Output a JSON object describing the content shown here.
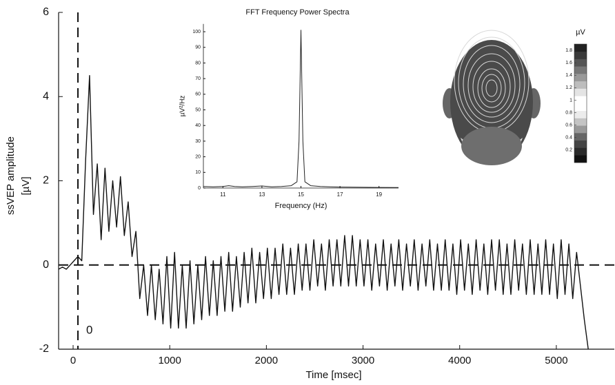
{
  "chart_data": [
    {
      "type": "line",
      "xlabel": "Time [msec]",
      "ylabel": [
        "ssVEP amplitude",
        "[µV]"
      ],
      "xlim": [
        -150,
        5600
      ],
      "xticks": [
        0,
        1000,
        2000,
        3000,
        4000,
        5000
      ],
      "ylim": [
        -2,
        6
      ],
      "yticks": [
        -2,
        0,
        2,
        4,
        6
      ],
      "hline": 0,
      "vline": 50,
      "vline_label": "0",
      "color": "#111111",
      "x": [
        -150,
        -110,
        -70,
        -30,
        10,
        50,
        90,
        130,
        170,
        210,
        250,
        290,
        330,
        370,
        410,
        450,
        490,
        530,
        570,
        610,
        650,
        690,
        730,
        770,
        810,
        850,
        890,
        930,
        970,
        1010,
        1050,
        1090,
        1130,
        1170,
        1210,
        1250,
        1290,
        1330,
        1370,
        1410,
        1450,
        1490,
        1530,
        1570,
        1610,
        1650,
        1690,
        1730,
        1770,
        1810,
        1850,
        1890,
        1930,
        1970,
        2010,
        2050,
        2090,
        2130,
        2170,
        2210,
        2250,
        2290,
        2330,
        2370,
        2410,
        2450,
        2490,
        2530,
        2570,
        2610,
        2650,
        2690,
        2730,
        2770,
        2810,
        2850,
        2890,
        2930,
        2970,
        3010,
        3050,
        3090,
        3130,
        3170,
        3210,
        3250,
        3290,
        3330,
        3370,
        3410,
        3450,
        3490,
        3530,
        3570,
        3610,
        3650,
        3690,
        3730,
        3770,
        3810,
        3850,
        3890,
        3930,
        3970,
        4010,
        4050,
        4090,
        4130,
        4170,
        4210,
        4250,
        4290,
        4330,
        4370,
        4410,
        4450,
        4490,
        4530,
        4570,
        4610,
        4650,
        4690,
        4730,
        4770,
        4810,
        4850,
        4890,
        4930,
        4970,
        5010,
        5050,
        5090,
        5130,
        5170,
        5210,
        5250,
        5290,
        5330
      ],
      "values": [
        -0.1,
        -0.05,
        -0.1,
        0,
        0.1,
        0.2,
        0.1,
        2.5,
        4.5,
        1.2,
        2.4,
        0.6,
        2.3,
        0.8,
        2.0,
        0.9,
        2.1,
        0.7,
        1.5,
        0.2,
        0.8,
        -0.8,
        0.0,
        -1.2,
        0.0,
        -1.3,
        -0.1,
        -1.4,
        0.2,
        -1.5,
        0.3,
        -1.5,
        0.0,
        -1.5,
        0.1,
        -1.4,
        0.0,
        -1.3,
        0.2,
        -1.2,
        0.1,
        -1.2,
        0.2,
        -1.1,
        0.3,
        -1.1,
        0.2,
        -1.0,
        0.3,
        -0.9,
        0.4,
        -0.9,
        0.3,
        -0.8,
        0.4,
        -0.8,
        0.4,
        -0.7,
        0.5,
        -0.7,
        0.4,
        -0.7,
        0.5,
        -0.6,
        0.5,
        -0.6,
        0.6,
        -0.5,
        0.5,
        -0.6,
        0.6,
        -0.5,
        0.6,
        -0.5,
        0.7,
        -0.5,
        0.7,
        -0.5,
        0.6,
        -0.5,
        0.6,
        -0.6,
        0.5,
        -0.5,
        0.6,
        -0.6,
        0.5,
        -0.5,
        0.6,
        -0.6,
        0.5,
        -0.5,
        0.6,
        -0.6,
        0.5,
        -0.5,
        0.6,
        -0.6,
        0.5,
        -0.6,
        0.6,
        -0.6,
        0.5,
        -0.7,
        0.6,
        -0.6,
        0.5,
        -0.7,
        0.6,
        -0.6,
        0.5,
        -0.7,
        0.6,
        -0.6,
        0.6,
        -0.7,
        0.5,
        -0.7,
        0.6,
        -0.6,
        0.5,
        -0.7,
        0.6,
        -0.7,
        0.5,
        -0.7,
        0.6,
        -0.7,
        0.5,
        -0.8,
        0.6,
        -0.7,
        0.5,
        -0.8,
        0.3,
        -0.5,
        -1.3,
        -2.0
      ]
    },
    {
      "type": "line",
      "title": "FFT Frequency Power Spectra",
      "xlabel": "Frequency (Hz)",
      "ylabel": "µV²/Hz",
      "xlim": [
        10,
        20
      ],
      "xticks": [
        11,
        13,
        15,
        17,
        19
      ],
      "ylim": [
        0,
        105
      ],
      "yticks": [
        0,
        10,
        20,
        30,
        40,
        50,
        60,
        70,
        80,
        90,
        100
      ],
      "color": "#222222",
      "x": [
        10,
        10.5,
        11,
        11.3,
        11.6,
        12,
        12.5,
        13,
        13.5,
        14,
        14.5,
        14.8,
        14.9,
        15,
        15.1,
        15.2,
        15.5,
        16,
        16.5,
        17,
        18,
        19,
        20
      ],
      "values": [
        1,
        0.8,
        1,
        1.5,
        1,
        0.8,
        1,
        1.3,
        0.8,
        1,
        1.5,
        4,
        30,
        101,
        30,
        4,
        1.5,
        1,
        0.8,
        0.6,
        0.5,
        0.4,
        0.3
      ]
    },
    {
      "type": "colorbar",
      "title": "µV",
      "lim": [
        0,
        1.9
      ],
      "ticks": [
        0.2,
        0.4,
        0.6,
        0.8,
        1,
        1.2,
        1.4,
        1.6,
        1.8
      ],
      "colormap": [
        "#111111",
        "#2a2a2a",
        "#444444",
        "#666666",
        "#999999",
        "#c4c4c4",
        "#ececec",
        "#ffffff",
        "#ffffff",
        "#e4e4e4",
        "#bdbdbd",
        "#999999",
        "#777777",
        "#555555",
        "#3a3a3a",
        "#222222"
      ]
    }
  ]
}
